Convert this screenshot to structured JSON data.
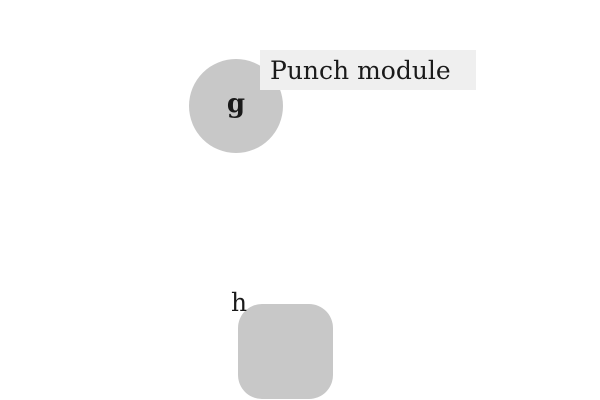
{
  "nodes": {
    "circle": {
      "label": "g",
      "shape": "circle",
      "fill": "#c8c8c8"
    },
    "square": {
      "label": "h",
      "shape": "rounded-square",
      "fill": "#c8c8c8"
    }
  },
  "tooltip": {
    "text": "Punch module",
    "background": "#efefef"
  }
}
